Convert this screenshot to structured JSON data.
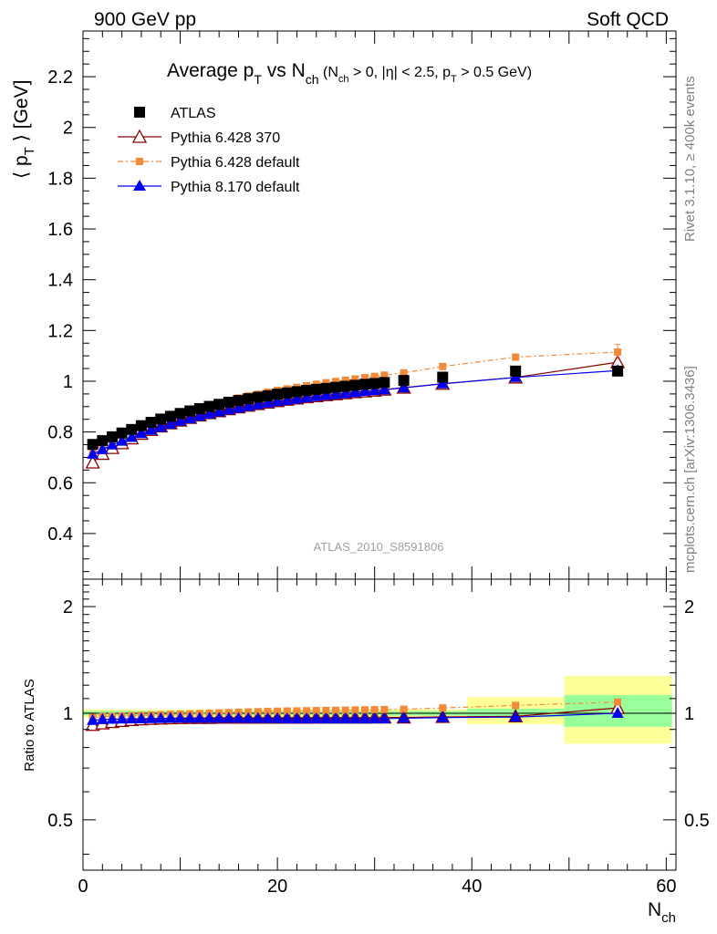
{
  "header": {
    "left": "900 GeV pp",
    "right": "Soft QCD"
  },
  "side": {
    "top": "Rivet 3.1.10, ≥ 400k events",
    "bottom": "mcplots.cern.ch [arXiv:1306.3436]"
  },
  "chart_data": [
    {
      "type": "line",
      "title": {
        "main": "Average p",
        "sub1": "T",
        "vs": " vs N",
        "sub2": "ch",
        "cond_a": " (N",
        "cond_sub_a": "ch",
        "cond_b": " > 0, |η| < 2.5, p",
        "cond_sub_b": "T",
        "cond_c": " > 0.5 GeV)"
      },
      "ylabel": {
        "lbr": "⟨ p",
        "sub": "T",
        "rbr": " ⟩ [GeV]"
      },
      "watermark": "ATLAS_2010_S8591806",
      "xlim": [
        0,
        61
      ],
      "ylim": [
        0.22,
        2.38
      ],
      "y_ticks": [
        "0.4",
        "0.6",
        "0.8",
        "1",
        "1.2",
        "1.4",
        "1.6",
        "1.8",
        "2",
        "2.2"
      ],
      "x": [
        1,
        2,
        3,
        4,
        5,
        6,
        7,
        8,
        9,
        10,
        11,
        12,
        13,
        14,
        15,
        16,
        17,
        18,
        19,
        20,
        21,
        22,
        23,
        24,
        25,
        26,
        27,
        28,
        29,
        30,
        31,
        33,
        37,
        44.5,
        55
      ],
      "series": [
        {
          "name": "ATLAS",
          "color": "#000000",
          "marker": "square",
          "values": [
            0.751,
            0.766,
            0.781,
            0.796,
            0.81,
            0.825,
            0.838,
            0.851,
            0.862,
            0.873,
            0.883,
            0.892,
            0.901,
            0.909,
            0.917,
            0.924,
            0.931,
            0.937,
            0.943,
            0.949,
            0.954,
            0.959,
            0.964,
            0.968,
            0.972,
            0.976,
            0.98,
            0.984,
            0.988,
            0.991,
            0.995,
            1.003,
            1.016,
            1.04,
            1.04
          ]
        },
        {
          "name": "Pythia 6.428 370",
          "color": "#8b0000",
          "marker": "open-triangle",
          "values": [
            0.68,
            0.714,
            0.737,
            0.756,
            0.775,
            0.793,
            0.808,
            0.822,
            0.834,
            0.845,
            0.856,
            0.865,
            0.874,
            0.882,
            0.89,
            0.897,
            0.904,
            0.91,
            0.916,
            0.922,
            0.927,
            0.932,
            0.937,
            0.941,
            0.945,
            0.949,
            0.953,
            0.957,
            0.96,
            0.963,
            0.967,
            0.975,
            0.99,
            1.015,
            1.075
          ]
        },
        {
          "name": "Pythia 6.428 default",
          "color": "#f28a3a",
          "marker": "small-square",
          "values": [
            0.72,
            0.747,
            0.768,
            0.786,
            0.804,
            0.821,
            0.836,
            0.85,
            0.863,
            0.875,
            0.886,
            0.897,
            0.907,
            0.916,
            0.925,
            0.934,
            0.942,
            0.949,
            0.957,
            0.964,
            0.97,
            0.976,
            0.982,
            0.988,
            0.994,
            0.999,
            1.004,
            1.009,
            1.014,
            1.019,
            1.024,
            1.033,
            1.058,
            1.095,
            1.115
          ]
        },
        {
          "name": "Pythia 8.170 default",
          "color": "#0000ee",
          "marker": "triangle",
          "values": [
            0.713,
            0.731,
            0.749,
            0.764,
            0.779,
            0.794,
            0.807,
            0.819,
            0.831,
            0.842,
            0.852,
            0.862,
            0.871,
            0.879,
            0.887,
            0.894,
            0.901,
            0.908,
            0.914,
            0.92,
            0.925,
            0.93,
            0.935,
            0.94,
            0.944,
            0.948,
            0.952,
            0.956,
            0.96,
            0.963,
            0.966,
            0.974,
            0.99,
            1.015,
            1.042
          ]
        }
      ]
    },
    {
      "type": "line",
      "ylabel": "Ratio to ATLAS",
      "xlabel": {
        "main": "N",
        "sub": "ch"
      },
      "xlim": [
        0,
        61
      ],
      "ylim": [
        0.3605,
        2.39
      ],
      "scale": "log",
      "y_ticks": [
        "0.5",
        "1",
        "2"
      ],
      "x_ticks": [
        "0",
        "20",
        "40",
        "60"
      ],
      "x": [
        1,
        2,
        3,
        4,
        5,
        6,
        7,
        8,
        9,
        10,
        11,
        12,
        13,
        14,
        15,
        16,
        17,
        18,
        19,
        20,
        21,
        22,
        23,
        24,
        25,
        26,
        27,
        28,
        29,
        30,
        31,
        33,
        37,
        44.5,
        55
      ],
      "uncertainty_bands": [
        {
          "x0": 0,
          "x1": 39.5,
          "stat_lo": 0.985,
          "stat_hi": 1.015,
          "tot_lo": 0.975,
          "tot_hi": 1.025
        },
        {
          "x0": 39.5,
          "x1": 49.5,
          "stat_lo": 0.975,
          "stat_hi": 1.03,
          "tot_lo": 0.93,
          "tot_hi": 1.11
        },
        {
          "x0": 49.5,
          "x1": 60.6,
          "stat_lo": 0.915,
          "stat_hi": 1.125,
          "tot_lo": 0.82,
          "tot_hi": 1.275
        }
      ],
      "band_colors": {
        "stat": "#99ff99",
        "total": "#ffff99"
      },
      "series": [
        {
          "name": "Pythia 6.428 370",
          "color": "#8b0000",
          "marker": "open-triangle",
          "values": [
            0.927,
            0.936,
            0.944,
            0.951,
            0.957,
            0.961,
            0.964,
            0.966,
            0.968,
            0.969,
            0.97,
            0.97,
            0.97,
            0.971,
            0.971,
            0.971,
            0.971,
            0.971,
            0.971,
            0.971,
            0.971,
            0.971,
            0.971,
            0.972,
            0.972,
            0.972,
            0.972,
            0.972,
            0.972,
            0.973,
            0.973,
            0.973,
            0.976,
            0.98,
            1.035
          ]
        },
        {
          "name": "Pythia 6.428 default",
          "color": "#f28a3a",
          "marker": "small-square",
          "values": [
            0.975,
            0.978,
            0.98,
            0.982,
            0.984,
            0.986,
            0.988,
            0.99,
            0.992,
            0.994,
            0.996,
            0.998,
            1.0,
            1.002,
            1.004,
            1.006,
            1.008,
            1.01,
            1.012,
            1.013,
            1.014,
            1.015,
            1.016,
            1.017,
            1.018,
            1.019,
            1.02,
            1.021,
            1.022,
            1.023,
            1.024,
            1.026,
            1.035,
            1.052,
            1.075
          ]
        },
        {
          "name": "Pythia 8.170 default",
          "color": "#0000ee",
          "marker": "triangle",
          "values": [
            0.955,
            0.96,
            0.962,
            0.963,
            0.964,
            0.965,
            0.966,
            0.967,
            0.968,
            0.968,
            0.968,
            0.968,
            0.968,
            0.968,
            0.968,
            0.968,
            0.967,
            0.967,
            0.966,
            0.966,
            0.965,
            0.965,
            0.965,
            0.965,
            0.965,
            0.965,
            0.965,
            0.965,
            0.965,
            0.965,
            0.965,
            0.968,
            0.972,
            0.975,
            1.0
          ]
        }
      ]
    }
  ]
}
